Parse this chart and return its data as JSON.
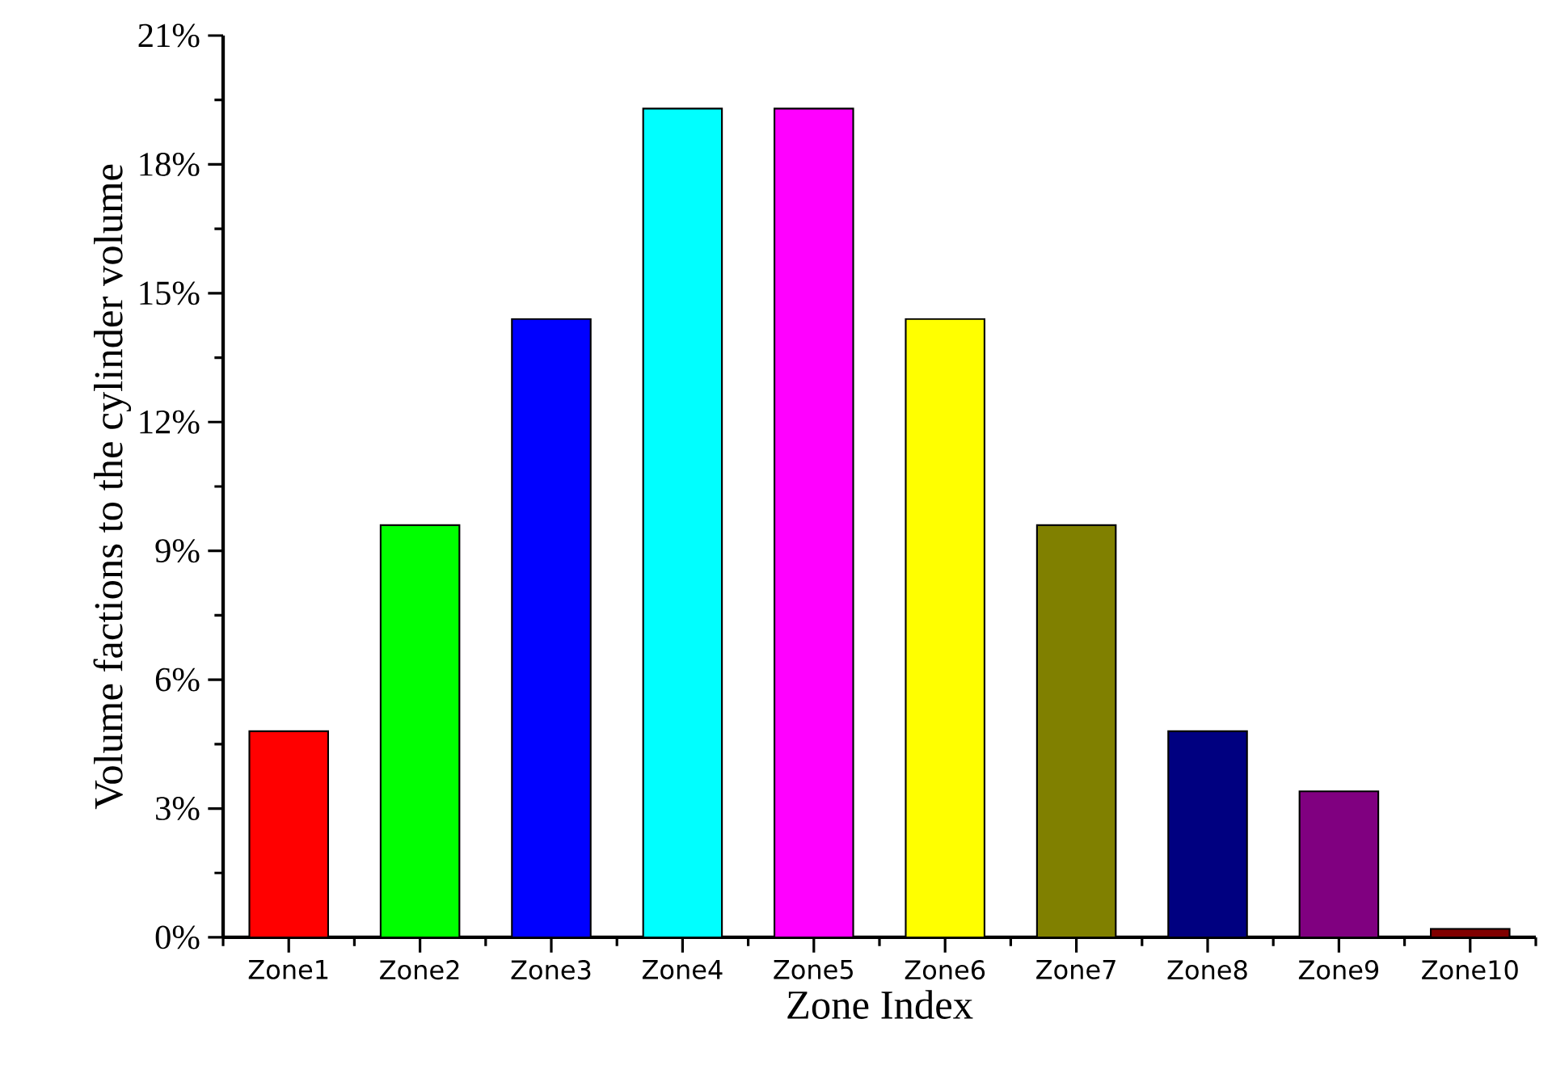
{
  "chart_data": {
    "type": "bar",
    "xlabel": "Zone Index",
    "ylabel": "Volume factions to the cylinder volume",
    "categories": [
      "Zone1",
      "Zone2",
      "Zone3",
      "Zone4",
      "Zone5",
      "Zone6",
      "Zone7",
      "Zone8",
      "Zone9",
      "Zone10"
    ],
    "values": [
      4.8,
      9.6,
      14.4,
      19.3,
      19.3,
      14.4,
      9.6,
      4.8,
      3.4,
      0.2
    ],
    "colors": [
      "#ff0000",
      "#00ff00",
      "#0000ff",
      "#00ffff",
      "#ff00ff",
      "#ffff00",
      "#808000",
      "#000080",
      "#800080",
      "#800000"
    ],
    "ylim": [
      0,
      21
    ],
    "yticks": [
      {
        "value": 0,
        "label": "0%"
      },
      {
        "value": 3,
        "label": "3%"
      },
      {
        "value": 6,
        "label": "6%"
      },
      {
        "value": 9,
        "label": "9%"
      },
      {
        "value": 12,
        "label": "12%"
      },
      {
        "value": 15,
        "label": "15%"
      },
      {
        "value": 18,
        "label": "18%"
      },
      {
        "value": 21,
        "label": "21%"
      }
    ],
    "grid": false
  }
}
